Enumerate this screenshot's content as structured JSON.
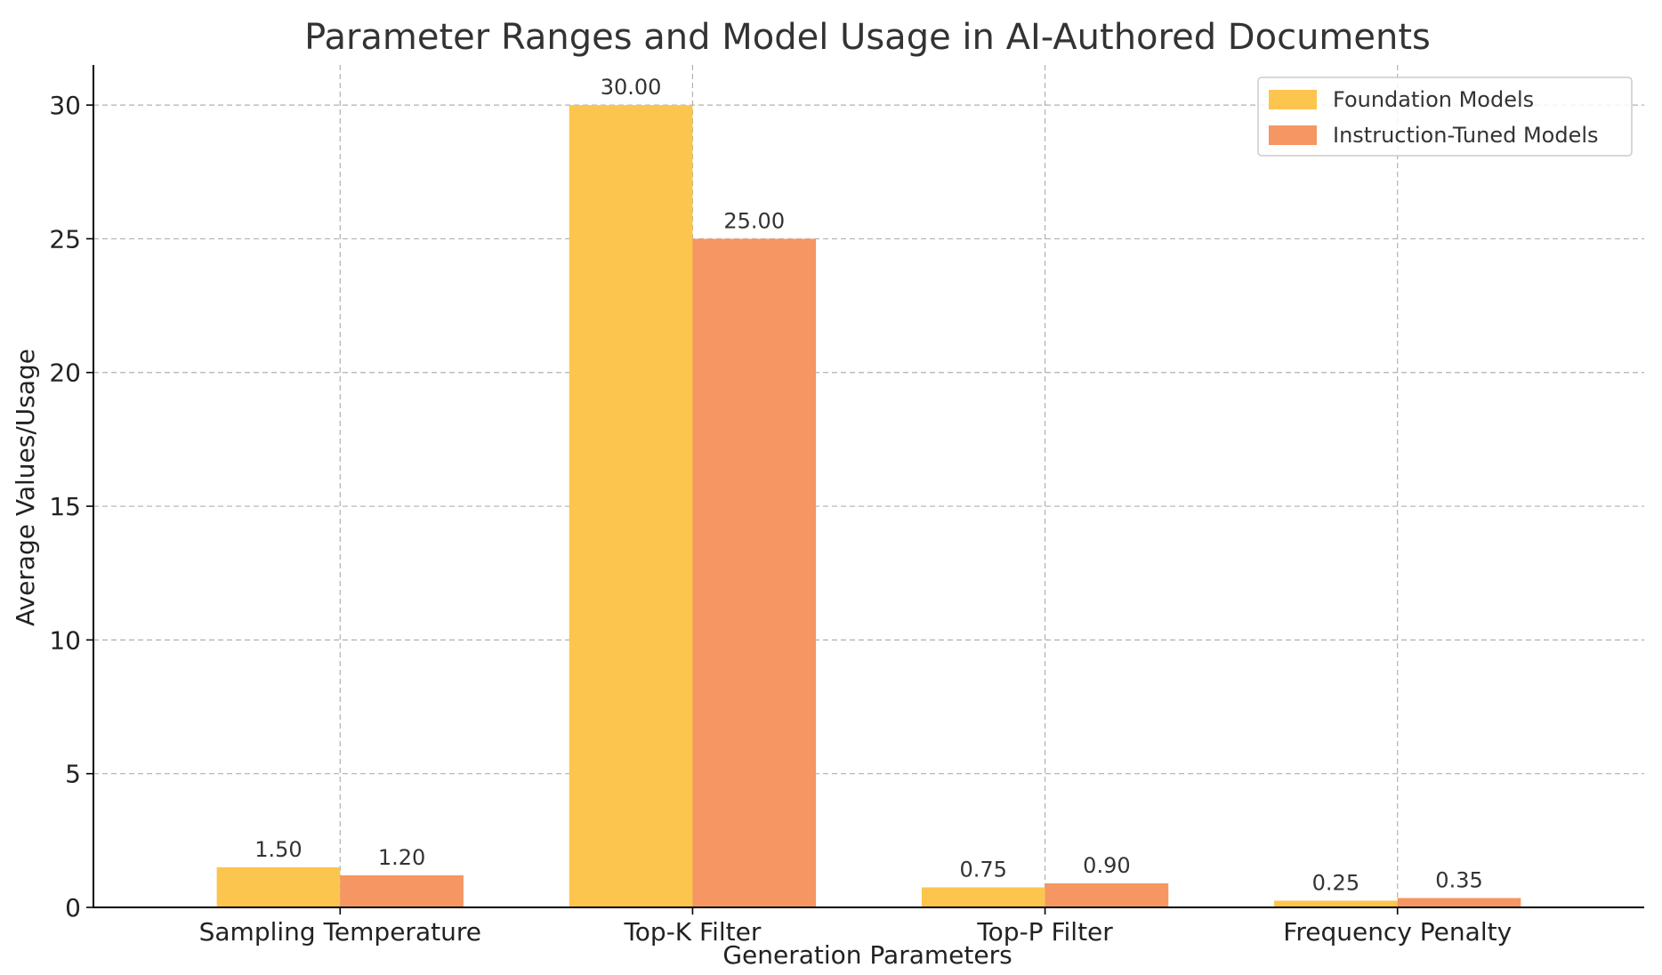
{
  "chart_data": {
    "type": "bar",
    "title": "Parameter Ranges and Model Usage in AI-Authored Documents",
    "xlabel": "Generation Parameters",
    "ylabel": "Average Values/Usage",
    "categories": [
      "Sampling Temperature",
      "Top-K Filter",
      "Top-P Filter",
      "Frequency Penalty"
    ],
    "series": [
      {
        "name": "Foundation Models",
        "values": [
          1.5,
          30,
          0.75,
          0.25
        ],
        "labels": [
          "1.50",
          "30.00",
          "0.75",
          "0.25"
        ],
        "color": "#fcc54e"
      },
      {
        "name": "Instruction-Tuned Models",
        "values": [
          1.2,
          25,
          0.9,
          0.35
        ],
        "labels": [
          "1.20",
          "25.00",
          "0.90",
          "0.35"
        ],
        "color": "#f59663"
      }
    ],
    "ylim": [
      0,
      31.5
    ],
    "yticks": [
      0,
      5,
      10,
      15,
      20,
      25,
      30
    ],
    "grid": true,
    "legend_position": "top-right"
  }
}
